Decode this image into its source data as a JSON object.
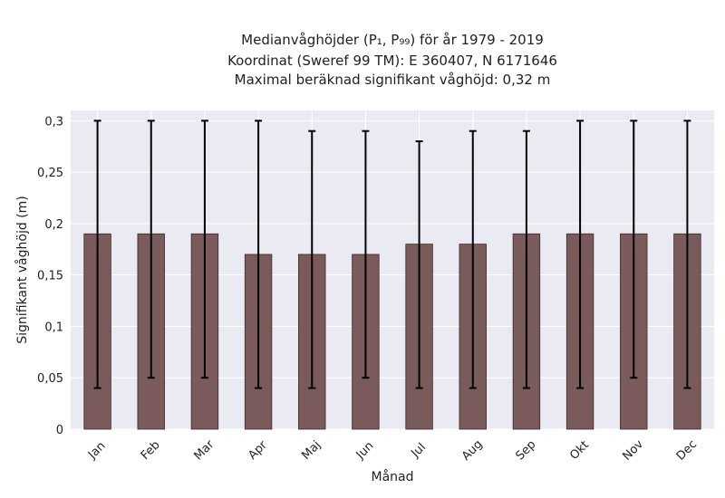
{
  "chart_data": {
    "type": "bar",
    "title_lines": [
      "Medianvåghöjder (P₁, P₉₉) för år 1979 - 2019",
      "Koordinat (Sweref 99 TM): E 360407, N 6171646",
      "Maximal beräknad signifikant våghöjd: 0,32 m"
    ],
    "xlabel": "Månad",
    "ylabel": "Signifikant våghöjd (m)",
    "categories": [
      "Jan",
      "Feb",
      "Mar",
      "Apr",
      "Maj",
      "Jun",
      "Jul",
      "Aug",
      "Sep",
      "Okt",
      "Nov",
      "Dec"
    ],
    "series": [
      {
        "values": [
          0.19,
          0.19,
          0.19,
          0.17,
          0.17,
          0.17,
          0.18,
          0.18,
          0.19,
          0.19,
          0.19,
          0.19
        ],
        "error_low": [
          0.04,
          0.05,
          0.05,
          0.04,
          0.04,
          0.05,
          0.04,
          0.04,
          0.04,
          0.04,
          0.05,
          0.04
        ],
        "error_high": [
          0.3,
          0.3,
          0.3,
          0.3,
          0.29,
          0.29,
          0.28,
          0.29,
          0.29,
          0.3,
          0.3,
          0.3
        ]
      }
    ],
    "ylim": [
      0,
      0.31
    ],
    "yticks": [
      0,
      0.05,
      0.1,
      0.15,
      0.2,
      0.25,
      0.3
    ],
    "ytick_labels": [
      "0",
      "0,05",
      "0,1",
      "0,15",
      "0,2",
      "0,25",
      "0,3"
    ],
    "grid": true,
    "colors": {
      "bar": "#7a5a5a",
      "bar_edge": "#3e2a2a",
      "error": "#000000",
      "plot_bg": "#eaeaf2",
      "grid": "#ffffff"
    }
  }
}
